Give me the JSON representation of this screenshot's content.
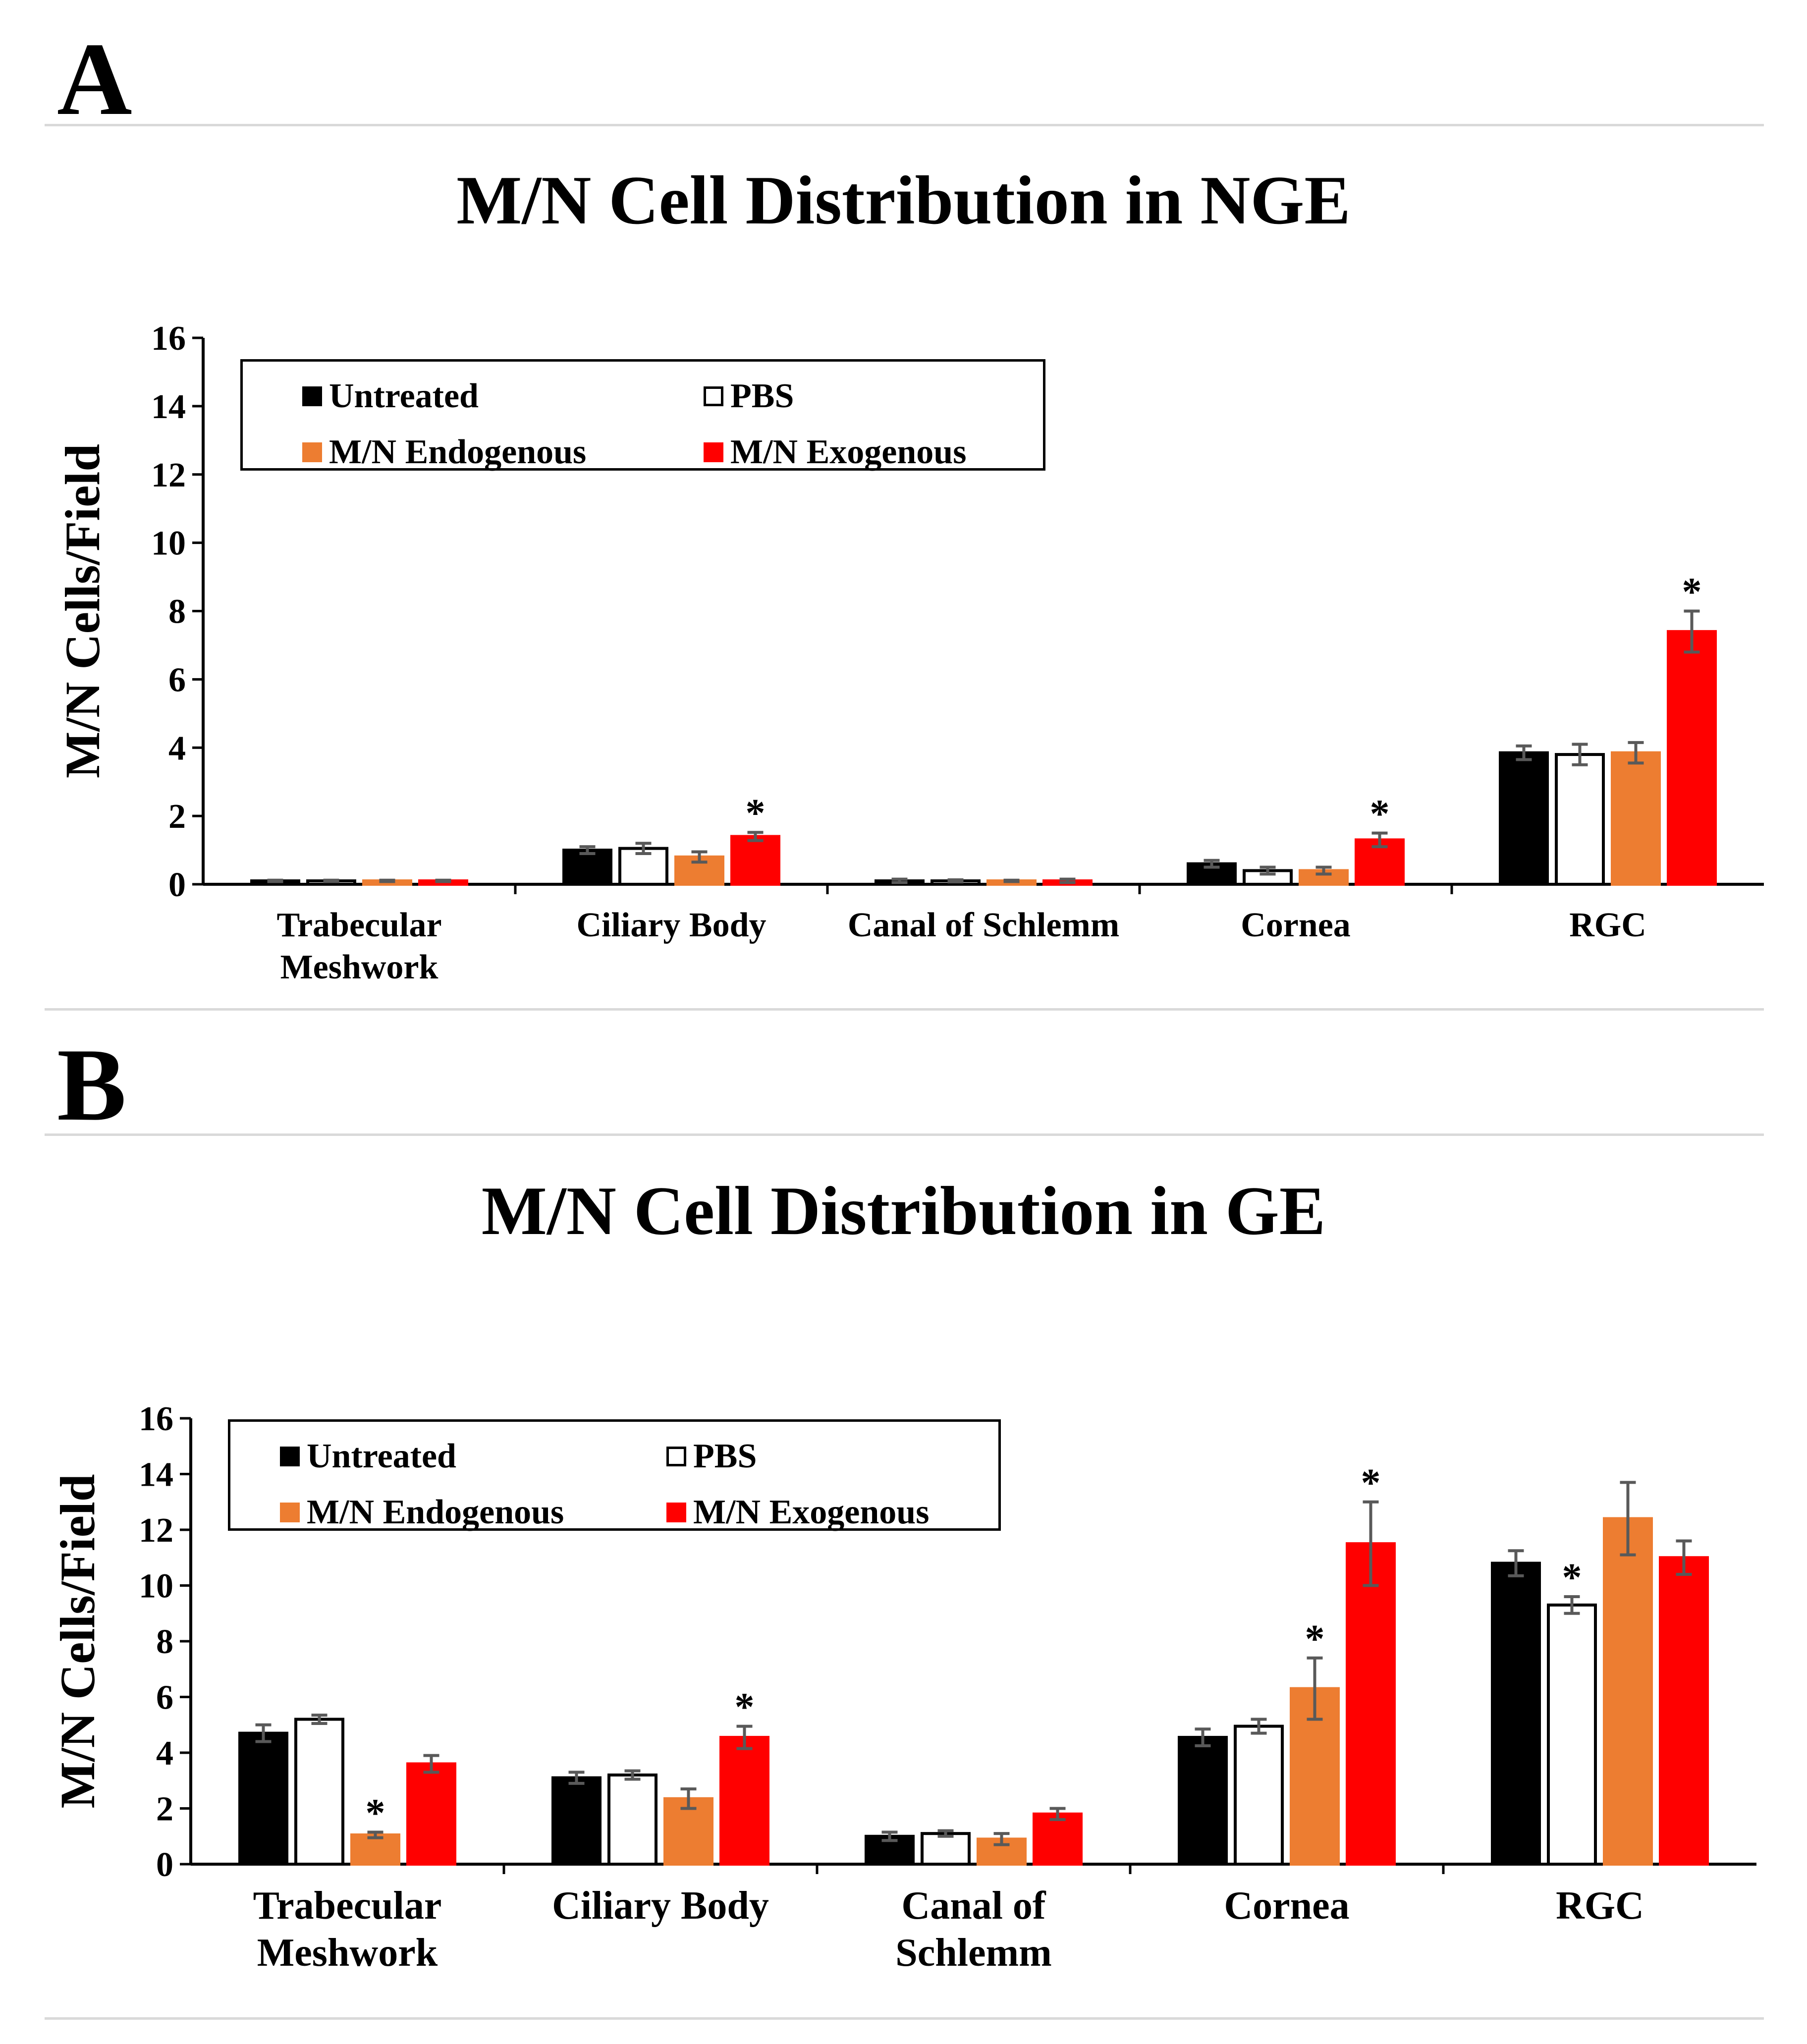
{
  "panels": {
    "a": {
      "letter": "A"
    },
    "b": {
      "letter": "B"
    }
  },
  "series_meta": [
    {
      "name": "Untreated",
      "fill": "#000000",
      "stroke": "#000000"
    },
    {
      "name": "PBS",
      "fill": "#ffffff",
      "stroke": "#000000"
    },
    {
      "name": "M/N Endogenous",
      "fill": "#ed7d31",
      "stroke": "#ed7d31"
    },
    {
      "name": "M/N Exogenous",
      "fill": "#ff0000",
      "stroke": "#ff0000"
    }
  ],
  "colors": {
    "error_bar": "#595959",
    "axis": "#000000",
    "rule": "#d9d9d9"
  },
  "chart_data": [
    {
      "type": "bar",
      "title": "M/N Cell Distribution in NGE",
      "ylabel": "M/N Cells/Field",
      "xlabel": "",
      "ylim": [
        0,
        16
      ],
      "yticks": [
        0,
        2,
        4,
        6,
        8,
        10,
        12,
        14,
        16
      ],
      "grid": false,
      "legend": "top-left",
      "categories": [
        [
          "Trabecular",
          "Meshwork"
        ],
        [
          "Ciliary  Body"
        ],
        [
          "Canal of Schlemm"
        ],
        [
          "Cornea"
        ],
        [
          "RGC"
        ]
      ],
      "series": [
        {
          "name": "Untreated",
          "values": [
            0.1,
            1.0,
            0.1,
            0.6,
            3.85
          ],
          "errors": [
            0.02,
            0.1,
            0.05,
            0.1,
            0.2
          ],
          "significant": [
            false,
            false,
            false,
            false,
            false
          ]
        },
        {
          "name": "PBS",
          "values": [
            0.1,
            1.05,
            0.1,
            0.4,
            3.8
          ],
          "errors": [
            0.02,
            0.15,
            0.03,
            0.1,
            0.3
          ],
          "significant": [
            false,
            false,
            false,
            false,
            false
          ]
        },
        {
          "name": "M/N Endogenous",
          "values": [
            0.1,
            0.8,
            0.1,
            0.4,
            3.85
          ],
          "errors": [
            0.02,
            0.15,
            0.02,
            0.1,
            0.3
          ],
          "significant": [
            false,
            false,
            false,
            false,
            false
          ]
        },
        {
          "name": "M/N Exogenous",
          "values": [
            0.1,
            1.4,
            0.1,
            1.3,
            7.4
          ],
          "errors": [
            0.02,
            0.12,
            0.05,
            0.2,
            0.6
          ],
          "significant": [
            false,
            true,
            false,
            true,
            true
          ]
        }
      ],
      "significance_marker": "*"
    },
    {
      "type": "bar",
      "title": "M/N Cell Distribution in GE",
      "ylabel": "M/N Cells/Field",
      "xlabel": "",
      "ylim": [
        0,
        16
      ],
      "yticks": [
        0,
        2,
        4,
        6,
        8,
        10,
        12,
        14,
        16
      ],
      "grid": false,
      "legend": "top-left",
      "categories": [
        [
          "Trabecular",
          "Meshwork"
        ],
        [
          "Ciliary Body"
        ],
        [
          "Canal of",
          "Schlemm"
        ],
        [
          "Cornea"
        ],
        [
          "RGC"
        ]
      ],
      "series": [
        {
          "name": "Untreated",
          "values": [
            4.7,
            3.1,
            1.0,
            4.55,
            10.8
          ],
          "errors": [
            0.3,
            0.2,
            0.15,
            0.3,
            0.45
          ],
          "significant": [
            false,
            false,
            false,
            false,
            false
          ]
        },
        {
          "name": "PBS",
          "values": [
            5.2,
            3.2,
            1.1,
            4.95,
            9.3
          ],
          "errors": [
            0.15,
            0.15,
            0.1,
            0.25,
            0.3
          ],
          "significant": [
            false,
            false,
            false,
            false,
            true
          ]
        },
        {
          "name": "M/N Endogenous",
          "values": [
            1.05,
            2.35,
            0.9,
            6.3,
            12.4
          ],
          "errors": [
            0.1,
            0.35,
            0.2,
            1.1,
            1.3
          ],
          "significant": [
            true,
            false,
            false,
            true,
            false
          ]
        },
        {
          "name": "M/N Exogenous",
          "values": [
            3.6,
            4.55,
            1.8,
            11.5,
            11.0
          ],
          "errors": [
            0.3,
            0.4,
            0.2,
            1.5,
            0.6
          ],
          "significant": [
            false,
            true,
            false,
            true,
            false
          ]
        }
      ],
      "significance_marker": "*"
    }
  ]
}
